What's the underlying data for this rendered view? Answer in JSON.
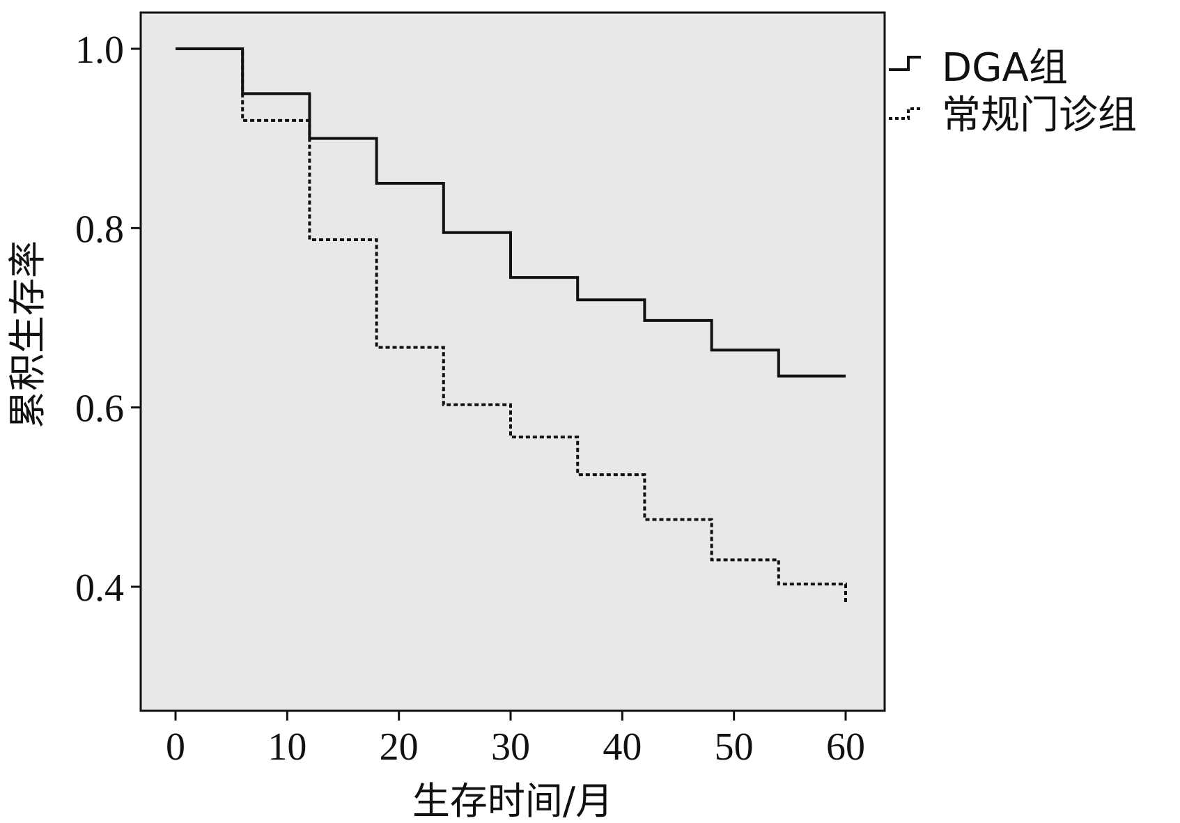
{
  "chart_data": {
    "type": "line",
    "step": true,
    "xlabel": "生存时间/月",
    "ylabel": "累积生存率",
    "xlim": [
      0,
      60
    ],
    "ylim": [
      0.28,
      1.04
    ],
    "xticks": [
      "0",
      "10",
      "20",
      "30",
      "40",
      "50",
      "60"
    ],
    "yticks": [
      "1.0",
      "0.8",
      "0.6",
      "0.4"
    ],
    "xtick_values": [
      0,
      10,
      20,
      30,
      40,
      50,
      60
    ],
    "ytick_values": [
      1.0,
      0.8,
      0.6,
      0.4
    ],
    "grid": false,
    "plot_background": "#e8e8e8",
    "legend_position": "top-right, outside plot",
    "series": [
      {
        "name": "DGA组",
        "style": "solid",
        "x": [
          0,
          6,
          12,
          18,
          24,
          30,
          36,
          42,
          48,
          54,
          60
        ],
        "values": [
          1.0,
          0.95,
          0.9,
          0.85,
          0.795,
          0.745,
          0.72,
          0.697,
          0.664,
          0.635,
          0.635
        ]
      },
      {
        "name": "常规门诊组",
        "style": "dotted",
        "x": [
          0,
          6,
          12,
          18,
          24,
          30,
          36,
          42,
          48,
          54,
          60
        ],
        "values": [
          1.0,
          0.92,
          0.787,
          0.667,
          0.603,
          0.567,
          0.525,
          0.475,
          0.43,
          0.403,
          0.38
        ]
      }
    ]
  }
}
